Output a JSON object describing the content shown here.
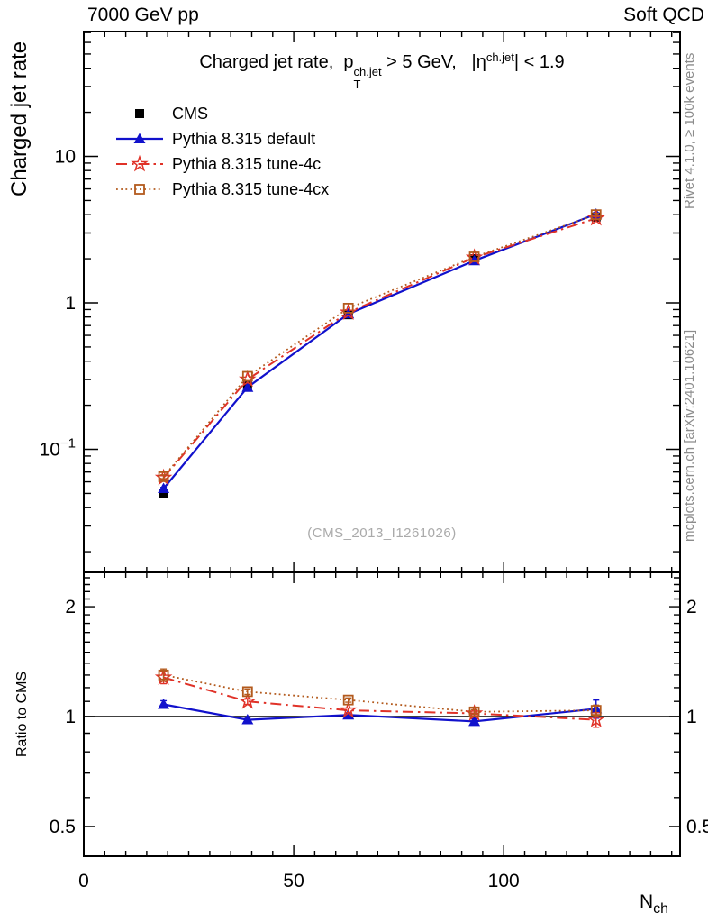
{
  "header": {
    "left": "7000 GeV pp",
    "right": "Soft QCD"
  },
  "plot_title": {
    "prefix": "Charged jet rate,  p",
    "p_sup": "ch.jet",
    "p_sub": "T",
    "mid": " > 5 GeV,   |η",
    "eta_sup": "ch.jet",
    "suffix": "| < 1.9"
  },
  "y_axis_title": "Charged jet rate",
  "ratio_axis_title": "Ratio to CMS",
  "x_axis_title": {
    "base": "N",
    "sub": "ch"
  },
  "watermark": "(CMS_2013_I1261026)",
  "side_notes": {
    "top_rotated": "Rivet 4.1.0, ≥ 100k events",
    "bottom_rotated": "mcplots.cern.ch [arXiv:2401.10621]"
  },
  "legend": [
    {
      "label": "CMS",
      "color": "#000000",
      "marker": "filled-square",
      "line": "none"
    },
    {
      "label": "Pythia 8.315 default",
      "color": "#1111cc",
      "marker": "filled-triangle",
      "line": "solid"
    },
    {
      "label": "Pythia 8.315 tune-4c",
      "color": "#e03228",
      "marker": "open-star",
      "line": "dashdot"
    },
    {
      "label": "Pythia 8.315 tune-4cx",
      "color": "#b35a1d",
      "marker": "open-square",
      "line": "dotted"
    }
  ],
  "axis_ticks": {
    "x_major": [
      {
        "v": 0,
        "label": "0"
      },
      {
        "v": 50,
        "label": "50"
      },
      {
        "v": 100,
        "label": "100"
      }
    ],
    "x_minor_step": 5,
    "x_minor_max": 140,
    "y_main_labeled": [
      {
        "v": 10,
        "label": "10"
      },
      {
        "v": 1,
        "label": "1"
      },
      {
        "v": 0.1,
        "label": "10",
        "sup": "−1"
      }
    ],
    "y_ratio_labeled": [
      {
        "v": 2,
        "label": "2"
      },
      {
        "v": 1,
        "label": "1"
      },
      {
        "v": 0.5,
        "label": "0.5"
      }
    ],
    "y_ratio_minor": [
      0.6,
      0.7,
      0.8,
      0.9,
      1.1,
      1.2,
      1.3,
      1.4,
      1.5,
      1.6,
      1.7,
      1.8,
      1.9,
      2.1,
      2.2,
      2.3,
      2.4
    ]
  },
  "chart_data": {
    "type": "line",
    "title": "Charged jet rate, pT^ch.jet > 5 GeV, |eta^ch.jet| < 1.9",
    "xlabel": "N_ch",
    "ylabel": "Charged jet rate",
    "ratio_ylabel": "Ratio to CMS",
    "yscale": "log",
    "ratio_yscale": "log",
    "xlim": [
      0,
      142
    ],
    "main_ylim": [
      0.0144,
      71
    ],
    "ratio_ylim": [
      0.414,
      2.48
    ],
    "ratio_reference": 1,
    "x": [
      19,
      39,
      63,
      93,
      122
    ],
    "series": [
      {
        "name": "CMS",
        "values": [
          0.05,
          0.27,
          0.83,
          2.0,
          3.85
        ],
        "errors": [
          0.001,
          0.004,
          0.012,
          0.045,
          0.13
        ]
      },
      {
        "name": "Pythia 8.315 default",
        "values": [
          0.054,
          0.265,
          0.84,
          1.94,
          4.04
        ],
        "errors": [
          0.001,
          0.003,
          0.008,
          0.02,
          0.09
        ],
        "ratio": [
          1.08,
          0.98,
          1.01,
          0.97,
          1.05
        ],
        "ratio_errors": [
          0.025,
          0.015,
          0.015,
          0.015,
          0.06
        ]
      },
      {
        "name": "Pythia 8.315 tune-4c",
        "values": [
          0.064,
          0.3,
          0.86,
          2.04,
          3.78
        ],
        "errors": [
          0.002,
          0.004,
          0.008,
          0.02,
          0.09
        ],
        "ratio": [
          1.28,
          1.1,
          1.04,
          1.02,
          0.98
        ],
        "ratio_errors": [
          0.05,
          0.02,
          0.015,
          0.015,
          0.045
        ]
      },
      {
        "name": "Pythia 8.315 tune-4cx",
        "values": [
          0.065,
          0.315,
          0.92,
          2.06,
          4.0
        ],
        "errors": [
          0.002,
          0.004,
          0.008,
          0.02,
          0.09
        ],
        "ratio": [
          1.3,
          1.17,
          1.11,
          1.03,
          1.04
        ],
        "ratio_errors": [
          0.05,
          0.02,
          0.015,
          0.015,
          0.035
        ]
      }
    ]
  }
}
